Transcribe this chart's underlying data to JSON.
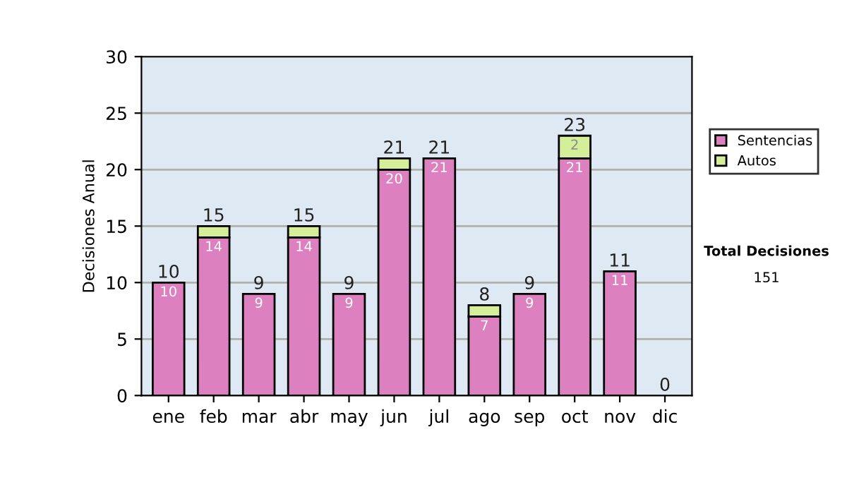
{
  "chart_data": {
    "type": "bar",
    "stacked": true,
    "ylabel": "Decisiones Anual",
    "categories": [
      "ene",
      "feb",
      "mar",
      "abr",
      "may",
      "jun",
      "jul",
      "ago",
      "sep",
      "oct",
      "nov",
      "dic"
    ],
    "series": [
      {
        "name": "Sentencias",
        "color": "#dd80c0",
        "values": [
          10,
          14,
          9,
          14,
          9,
          20,
          21,
          7,
          9,
          21,
          11,
          0
        ],
        "value_labels": [
          "10",
          "14",
          "9",
          "14",
          "9",
          "20",
          "21",
          "7",
          "9",
          "21",
          "11",
          null
        ]
      },
      {
        "name": "Autos",
        "color": "#d4ee99",
        "values": [
          0,
          1,
          0,
          1,
          0,
          1,
          0,
          1,
          0,
          2,
          0,
          0
        ],
        "value_labels": [
          null,
          null,
          null,
          null,
          null,
          null,
          null,
          null,
          null,
          "2",
          null,
          null
        ]
      }
    ],
    "totals": [
      "10",
      "15",
      "9",
      "15",
      "9",
      "21",
      "21",
      "8",
      "9",
      "23",
      "11",
      "0"
    ],
    "ylim": [
      0,
      30
    ],
    "yticks": [
      0,
      5,
      10,
      15,
      20,
      25,
      30
    ],
    "grid": "y",
    "legend": "right",
    "annotations": [
      "Total Decisiones",
      "151"
    ]
  }
}
